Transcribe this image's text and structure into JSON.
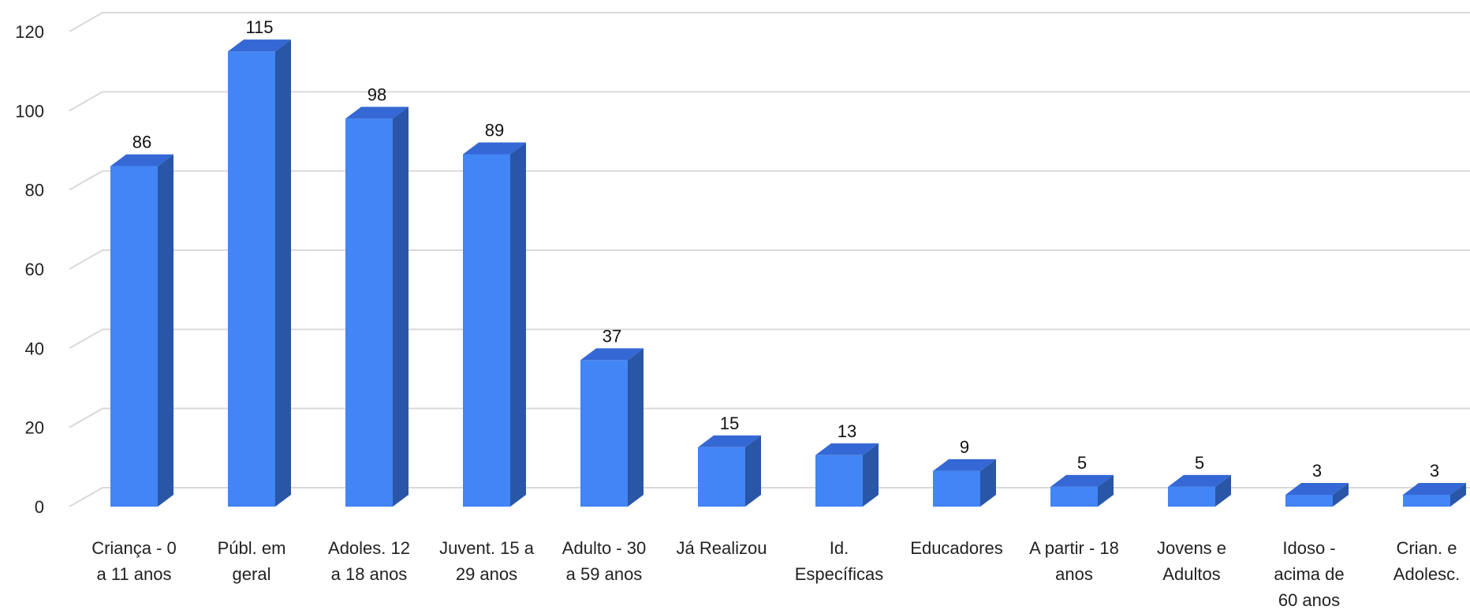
{
  "chart_data": {
    "type": "bar",
    "style": "3d-column",
    "categories": [
      [
        "Criança - 0",
        "a 11 anos"
      ],
      [
        "Públ. em",
        "geral"
      ],
      [
        "Adoles. 12",
        "a 18 anos"
      ],
      [
        "Juvent. 15 a",
        "29 anos"
      ],
      [
        "Adulto - 30",
        "a 59 anos"
      ],
      [
        "Já Realizou"
      ],
      [
        "Id.",
        "Específicas"
      ],
      [
        "Educadores"
      ],
      [
        "A partir - 18",
        "anos"
      ],
      [
        "Jovens e",
        "Adultos"
      ],
      [
        "Idoso -",
        "acima de",
        "60 anos"
      ],
      [
        "Crian. e",
        "Adolesc."
      ]
    ],
    "values": [
      86,
      115,
      98,
      89,
      37,
      15,
      13,
      9,
      5,
      5,
      3,
      3
    ],
    "data_labels": [
      "86",
      "115",
      "98",
      "89",
      "37",
      "15",
      "13",
      "9",
      "5",
      "5",
      "3",
      "3"
    ],
    "yticks": [
      "0",
      "20",
      "40",
      "60",
      "80",
      "100",
      "120"
    ],
    "ylim": [
      0,
      120
    ],
    "grid": true,
    "legend": "none",
    "colors": {
      "front": "#4285f4",
      "side": "#2a56a8",
      "top": "#3568d4",
      "grid": "#d9d9d9"
    }
  }
}
